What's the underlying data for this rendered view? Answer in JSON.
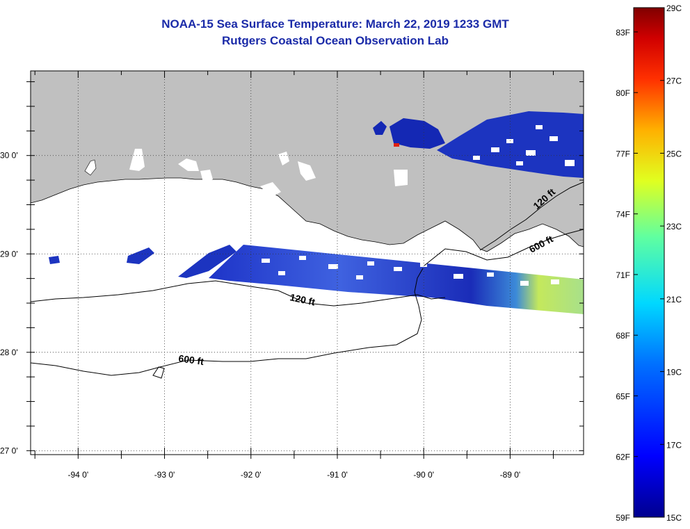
{
  "header": {
    "title": "NOAA-15 Sea Surface Temperature:  March 22, 2019 1233 GMT",
    "subtitle": "Rutgers Coastal Ocean Observation Lab"
  },
  "axes": {
    "lon_labels": [
      "-94 0'",
      "-93 0'",
      "-92 0'",
      "-91 0'",
      "-90 0'",
      "-89 0'"
    ],
    "lat_labels": [
      "30 0'",
      "29 0'",
      "28 0'",
      "27 0'"
    ],
    "lon_range": [
      -94.55,
      -88.15
    ],
    "lat_range": [
      26.96,
      30.86
    ]
  },
  "contours": {
    "labels": [
      "120 ft",
      "600 ft",
      "120 ft",
      "600 ft"
    ]
  },
  "colorbar": {
    "f_labels": [
      "83F",
      "80F",
      "77F",
      "74F",
      "71F",
      "68F",
      "65F",
      "62F",
      "59F"
    ],
    "c_labels": [
      "29C",
      "27C",
      "25C",
      "23C",
      "21C",
      "19C",
      "17C",
      "15C"
    ],
    "range_c": [
      15,
      29
    ]
  },
  "colors": {
    "land": "#c0c0c0",
    "title": "#1a2aa8",
    "sst_cold": "#0a1aa0",
    "sst_mid": "#4a70e6",
    "sst_warm": "#c8e860"
  }
}
